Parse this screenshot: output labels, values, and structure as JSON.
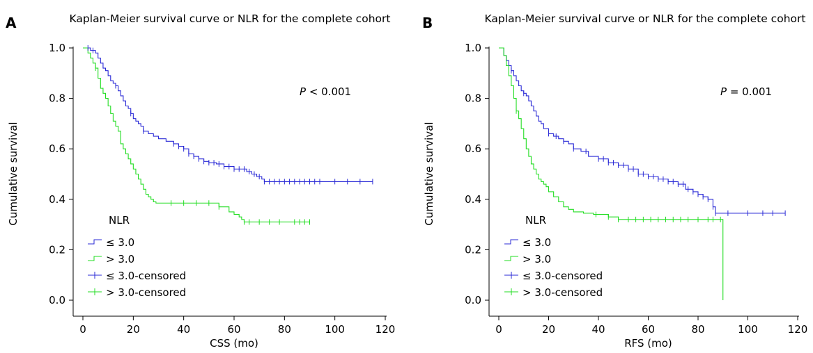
{
  "colors": {
    "low": "#2a2ad6",
    "high": "#22dd22",
    "axis": "#000000"
  },
  "chart_data": [
    {
      "type": "line",
      "panel": "A",
      "title": "Kaplan-Meier survival curve or NLR for the complete cohort",
      "xlabel": "CSS (mo)",
      "ylabel": "Cumulative survival",
      "xlim": [
        0,
        120
      ],
      "ylim": [
        0,
        1
      ],
      "xticks": [
        "0",
        "20",
        "40",
        "60",
        "80",
        "100",
        "120"
      ],
      "yticks": [
        "0.0",
        "0.2",
        "0.4",
        "0.6",
        "0.8",
        "1.0"
      ],
      "p_label": "P",
      "p_value": " < 0.001",
      "legend_title": "NLR",
      "legend": [
        "≤ 3.0",
        "> 3.0",
        "≤ 3.0-censored",
        "> 3.0-censored"
      ],
      "series": [
        {
          "name": "≤ 3.0",
          "color_key": "low",
          "x": [
            0,
            3,
            5,
            6,
            7,
            8,
            9,
            10,
            11,
            12,
            13,
            14,
            15,
            16,
            17,
            18,
            19,
            20,
            21,
            22,
            23,
            24,
            26,
            28,
            30,
            33,
            36,
            38,
            40,
            42,
            44,
            46,
            48,
            50,
            53,
            56,
            60,
            65,
            67,
            69,
            71,
            72,
            115
          ],
          "y": [
            1.0,
            0.99,
            0.98,
            0.96,
            0.94,
            0.92,
            0.91,
            0.89,
            0.87,
            0.86,
            0.85,
            0.83,
            0.81,
            0.79,
            0.77,
            0.76,
            0.74,
            0.72,
            0.71,
            0.7,
            0.69,
            0.67,
            0.66,
            0.65,
            0.64,
            0.63,
            0.62,
            0.61,
            0.6,
            0.58,
            0.57,
            0.56,
            0.55,
            0.545,
            0.54,
            0.53,
            0.52,
            0.51,
            0.5,
            0.49,
            0.48,
            0.47,
            0.47
          ],
          "censored_x": [
            2,
            4,
            13,
            19,
            24,
            36,
            38,
            40,
            42,
            44,
            46,
            48,
            50,
            52,
            54,
            56,
            58,
            60,
            62,
            64,
            66,
            68,
            70,
            72,
            74,
            76,
            78,
            80,
            82,
            84,
            86,
            88,
            90,
            92,
            94,
            100,
            105,
            110,
            115
          ]
        },
        {
          "name": "> 3.0",
          "color_key": "high",
          "x": [
            0,
            2,
            3,
            4,
            5,
            6,
            7,
            8,
            9,
            10,
            11,
            12,
            13,
            14,
            15,
            16,
            17,
            18,
            19,
            20,
            21,
            22,
            23,
            24,
            25,
            26,
            27,
            28,
            29,
            30,
            54,
            58,
            60,
            62,
            63,
            64,
            90
          ],
          "y": [
            1.0,
            0.98,
            0.96,
            0.94,
            0.92,
            0.88,
            0.84,
            0.82,
            0.8,
            0.77,
            0.74,
            0.71,
            0.69,
            0.67,
            0.62,
            0.6,
            0.58,
            0.56,
            0.54,
            0.52,
            0.5,
            0.48,
            0.46,
            0.44,
            0.42,
            0.41,
            0.4,
            0.39,
            0.385,
            0.385,
            0.37,
            0.35,
            0.34,
            0.33,
            0.32,
            0.31,
            0.31
          ]
        }
      ],
      "censored_high_x": [
        5,
        35,
        40,
        45,
        50,
        54,
        64,
        66,
        70,
        74,
        78,
        84,
        86,
        88,
        90
      ]
    },
    {
      "type": "line",
      "panel": "B",
      "title": "Kaplan-Meier survival curve or NLR for the complete cohort",
      "xlabel": "RFS (mo)",
      "ylabel": "Cumulative survival",
      "xlim": [
        0,
        120
      ],
      "ylim": [
        0,
        1
      ],
      "xticks": [
        "0",
        "20",
        "40",
        "60",
        "80",
        "100",
        "120"
      ],
      "yticks": [
        "0.0",
        "0.2",
        "0.4",
        "0.6",
        "0.8",
        "1.0"
      ],
      "p_label": "P",
      "p_value": " = 0.001",
      "legend_title": "NLR",
      "legend": [
        "≤ 3.0",
        "> 3.0",
        "≤ 3.0-censored",
        "> 3.0-censored"
      ],
      "series": [
        {
          "name": "≤ 3.0",
          "color_key": "low",
          "x": [
            0,
            2,
            3,
            4,
            5,
            6,
            7,
            8,
            9,
            10,
            11,
            12,
            13,
            14,
            15,
            16,
            17,
            18,
            20,
            22,
            24,
            26,
            28,
            30,
            33,
            36,
            40,
            44,
            48,
            52,
            56,
            60,
            64,
            68,
            72,
            75,
            78,
            80,
            82,
            84,
            86,
            87,
            115
          ],
          "y": [
            1.0,
            0.97,
            0.95,
            0.93,
            0.91,
            0.89,
            0.87,
            0.85,
            0.83,
            0.82,
            0.81,
            0.79,
            0.77,
            0.75,
            0.73,
            0.71,
            0.7,
            0.68,
            0.66,
            0.65,
            0.64,
            0.63,
            0.62,
            0.6,
            0.59,
            0.57,
            0.56,
            0.545,
            0.535,
            0.52,
            0.5,
            0.49,
            0.48,
            0.47,
            0.46,
            0.44,
            0.43,
            0.42,
            0.41,
            0.4,
            0.37,
            0.345,
            0.345
          ],
          "censored_x": [
            5,
            10,
            20,
            23,
            26,
            30,
            35,
            40,
            42,
            44,
            46,
            48,
            50,
            52,
            54,
            56,
            58,
            60,
            62,
            64,
            66,
            68,
            70,
            72,
            74,
            76,
            78,
            80,
            82,
            84,
            86,
            87,
            92,
            100,
            106,
            110,
            115
          ]
        },
        {
          "name": "> 3.0",
          "color_key": "high",
          "x": [
            0,
            2,
            3,
            4,
            5,
            6,
            7,
            8,
            9,
            10,
            11,
            12,
            13,
            14,
            15,
            16,
            17,
            18,
            19,
            20,
            22,
            24,
            26,
            28,
            30,
            34,
            38,
            40,
            44,
            48,
            89,
            90
          ],
          "y": [
            1.0,
            0.97,
            0.93,
            0.89,
            0.85,
            0.8,
            0.75,
            0.72,
            0.68,
            0.64,
            0.6,
            0.57,
            0.54,
            0.52,
            0.5,
            0.48,
            0.47,
            0.46,
            0.45,
            0.43,
            0.41,
            0.39,
            0.37,
            0.36,
            0.35,
            0.345,
            0.34,
            0.34,
            0.33,
            0.32,
            0.32,
            0.0
          ]
        }
      ],
      "censored_high_x": [
        7,
        39,
        44,
        48,
        52,
        55,
        58,
        61,
        64,
        67,
        70,
        73,
        76,
        80,
        84,
        86,
        89
      ]
    }
  ]
}
